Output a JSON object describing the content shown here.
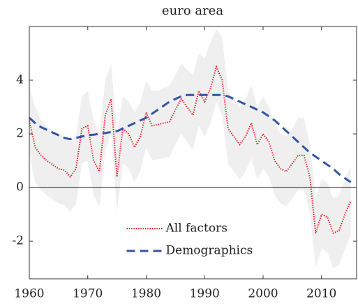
{
  "chart_data": {
    "type": "line",
    "title": "euro area",
    "x": [
      1960,
      1961,
      1962,
      1963,
      1964,
      1965,
      1966,
      1967,
      1968,
      1969,
      1970,
      1971,
      1972,
      1973,
      1974,
      1975,
      1976,
      1977,
      1978,
      1979,
      1980,
      1981,
      1982,
      1983,
      1984,
      1985,
      1986,
      1987,
      1988,
      1989,
      1990,
      1991,
      1992,
      1993,
      1994,
      1995,
      1996,
      1997,
      1998,
      1999,
      2000,
      2001,
      2002,
      2003,
      2004,
      2005,
      2006,
      2007,
      2008,
      2009,
      2010,
      2011,
      2012,
      2013,
      2014,
      2015
    ],
    "series": [
      {
        "name": "All factors",
        "color": "#e8232a",
        "style": "dotted",
        "values": [
          2.5,
          1.5,
          1.2,
          1.0,
          0.85,
          0.7,
          0.65,
          0.4,
          0.7,
          2.2,
          2.3,
          1.0,
          0.6,
          2.7,
          3.3,
          0.4,
          2.2,
          2.0,
          1.5,
          1.9,
          2.8,
          2.3,
          2.35,
          2.4,
          2.45,
          2.9,
          3.3,
          3.0,
          2.7,
          3.6,
          3.2,
          3.7,
          4.5,
          4.0,
          2.2,
          1.9,
          1.6,
          1.9,
          2.4,
          1.6,
          2.0,
          1.7,
          1.0,
          0.7,
          0.6,
          0.9,
          1.2,
          1.2,
          0.4,
          -1.7,
          -1.0,
          -1.1,
          -1.7,
          -1.6,
          -1.0,
          -0.5
        ]
      },
      {
        "name": "Demographics",
        "color": "#3355a5",
        "style": "dashed",
        "values": [
          2.6,
          2.4,
          2.25,
          2.15,
          2.05,
          1.95,
          1.85,
          1.8,
          1.85,
          1.9,
          1.95,
          1.97,
          2.0,
          2.03,
          2.07,
          2.1,
          2.2,
          2.3,
          2.4,
          2.5,
          2.6,
          2.75,
          2.9,
          3.05,
          3.2,
          3.3,
          3.4,
          3.45,
          3.45,
          3.45,
          3.45,
          3.45,
          3.45,
          3.45,
          3.4,
          3.3,
          3.2,
          3.1,
          3.0,
          2.9,
          2.8,
          2.65,
          2.5,
          2.3,
          2.1,
          1.9,
          1.7,
          1.5,
          1.3,
          1.15,
          1.0,
          0.85,
          0.7,
          0.5,
          0.35,
          0.2
        ]
      }
    ],
    "band": {
      "color": "#efefef",
      "upper": [
        3.8,
        3.0,
        2.5,
        2.3,
        2.1,
        2.0,
        1.9,
        1.7,
        2.0,
        3.4,
        3.6,
        2.5,
        2.0,
        4.0,
        4.6,
        2.0,
        3.4,
        3.2,
        2.8,
        3.2,
        4.0,
        3.6,
        3.6,
        3.7,
        3.8,
        4.2,
        4.6,
        4.4,
        4.2,
        5.0,
        4.8,
        5.4,
        5.9,
        5.6,
        3.6,
        3.3,
        3.0,
        3.3,
        3.8,
        3.0,
        3.4,
        3.0,
        2.4,
        2.0,
        1.9,
        2.2,
        2.6,
        2.6,
        1.6,
        -0.4,
        0.3,
        0.2,
        -0.4,
        -0.3,
        0.3,
        0.8
      ],
      "lower": [
        1.2,
        0.2,
        -0.1,
        -0.3,
        -0.45,
        -0.6,
        -0.65,
        -0.9,
        -0.6,
        0.9,
        1.0,
        -0.3,
        -0.7,
        1.4,
        2.0,
        -0.9,
        0.9,
        0.7,
        0.2,
        0.6,
        1.5,
        1.0,
        1.05,
        1.1,
        1.15,
        1.6,
        2.0,
        1.7,
        1.4,
        2.3,
        1.9,
        2.4,
        3.2,
        2.7,
        0.9,
        0.6,
        0.3,
        0.6,
        1.1,
        0.3,
        0.7,
        0.4,
        -0.3,
        -0.6,
        -0.7,
        -0.4,
        -0.1,
        -0.1,
        -0.9,
        -3.0,
        -2.3,
        -2.4,
        -3.0,
        -2.9,
        -2.3,
        -1.8
      ]
    },
    "hline": 0,
    "xlim": [
      1960,
      2016
    ],
    "ylim": [
      -3.4,
      6
    ],
    "xticks": [
      1960,
      1970,
      1980,
      1990,
      2000,
      2010
    ],
    "yticks": [
      -2,
      0,
      2,
      4
    ],
    "legend": "lower center"
  }
}
